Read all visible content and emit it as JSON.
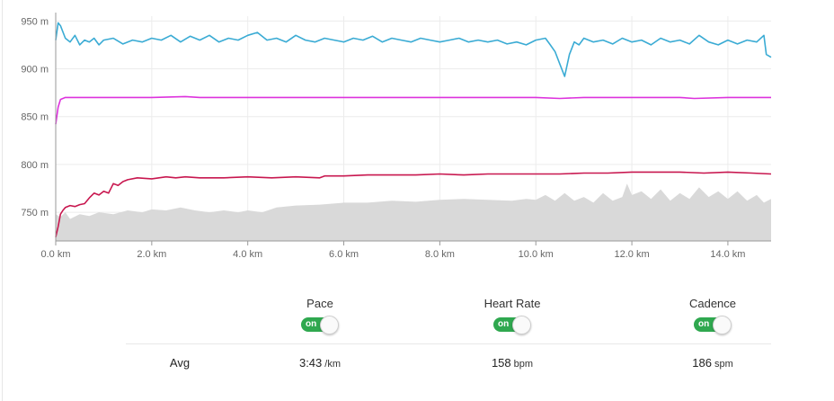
{
  "chart_data": {
    "type": "line",
    "xlabel": "",
    "ylabel": "",
    "xlim": [
      0,
      14.9
    ],
    "ylim": [
      720,
      955
    ],
    "x_ticks": [
      0,
      2,
      4,
      6,
      8,
      10,
      12,
      14
    ],
    "x_tick_labels": [
      "0.0 km",
      "2.0 km",
      "4.0 km",
      "6.0 km",
      "8.0 km",
      "10.0 km",
      "12.0 km",
      "14.0 km"
    ],
    "y_ticks": [
      750,
      800,
      850,
      900,
      950
    ],
    "y_tick_labels": [
      "750 m",
      "800 m",
      "850 m",
      "900 m",
      "950 m"
    ],
    "grid": true,
    "series": [
      {
        "color": "#d9d9d9",
        "kind": "area",
        "x": [
          0,
          0.1,
          0.2,
          0.3,
          0.5,
          0.7,
          0.9,
          1.2,
          1.5,
          1.8,
          2.0,
          2.3,
          2.6,
          2.9,
          3.2,
          3.5,
          3.8,
          4.0,
          4.3,
          4.6,
          5.0,
          5.5,
          6.0,
          6.5,
          7.0,
          7.5,
          8.0,
          8.5,
          9.0,
          9.5,
          9.8,
          10.0,
          10.2,
          10.4,
          10.6,
          10.8,
          11.0,
          11.2,
          11.4,
          11.6,
          11.8,
          11.9,
          12.0,
          12.2,
          12.4,
          12.6,
          12.8,
          13.0,
          13.2,
          13.4,
          13.6,
          13.8,
          14.0,
          14.2,
          14.4,
          14.6,
          14.75,
          14.9
        ],
        "y": [
          748,
          745,
          750,
          743,
          748,
          746,
          750,
          748,
          752,
          750,
          753,
          752,
          755,
          752,
          750,
          752,
          750,
          752,
          750,
          755,
          757,
          758,
          760,
          760,
          762,
          761,
          763,
          764,
          763,
          762,
          764,
          763,
          768,
          762,
          770,
          762,
          766,
          760,
          770,
          762,
          766,
          780,
          768,
          772,
          764,
          774,
          762,
          770,
          764,
          776,
          766,
          772,
          764,
          772,
          762,
          768,
          760,
          764
        ]
      },
      {
        "color": "#c8174f",
        "kind": "line",
        "x": [
          0,
          0.05,
          0.1,
          0.15,
          0.2,
          0.3,
          0.4,
          0.5,
          0.6,
          0.7,
          0.8,
          0.9,
          1.0,
          1.1,
          1.2,
          1.3,
          1.4,
          1.5,
          1.7,
          2.0,
          2.3,
          2.5,
          2.7,
          3.0,
          3.5,
          4.0,
          4.5,
          5.0,
          5.5,
          5.6,
          6.0,
          6.5,
          7.0,
          7.5,
          8.0,
          8.5,
          9.0,
          9.5,
          10.0,
          10.5,
          11.0,
          11.5,
          12.0,
          12.5,
          13.0,
          13.5,
          14.0,
          14.5,
          14.9
        ],
        "y": [
          724,
          735,
          748,
          752,
          755,
          757,
          756,
          758,
          759,
          765,
          770,
          768,
          772,
          770,
          780,
          778,
          782,
          784,
          786,
          785,
          787,
          786,
          787,
          786,
          786,
          787,
          786,
          787,
          786,
          788,
          788,
          789,
          789,
          789,
          790,
          789,
          790,
          790,
          790,
          790,
          791,
          791,
          792,
          792,
          792,
          791,
          792,
          791,
          790
        ]
      },
      {
        "color": "#dd33dd",
        "kind": "line",
        "x": [
          0,
          0.05,
          0.1,
          0.2,
          0.5,
          1.0,
          2.0,
          2.7,
          3.0,
          4.0,
          5.0,
          6.0,
          7.0,
          8.0,
          9.0,
          10.0,
          10.5,
          11.0,
          12.0,
          13.0,
          13.3,
          14.0,
          14.5,
          14.9
        ],
        "y": [
          842,
          860,
          868,
          870,
          870,
          870,
          870,
          871,
          870,
          870,
          870,
          870,
          870,
          870,
          870,
          870,
          869,
          870,
          870,
          870,
          869,
          870,
          870,
          870
        ]
      },
      {
        "color": "#3aabd4",
        "kind": "line",
        "x": [
          0,
          0.05,
          0.1,
          0.2,
          0.3,
          0.4,
          0.5,
          0.6,
          0.7,
          0.8,
          0.9,
          1.0,
          1.2,
          1.4,
          1.6,
          1.8,
          2.0,
          2.2,
          2.4,
          2.6,
          2.8,
          3.0,
          3.2,
          3.4,
          3.6,
          3.8,
          4.0,
          4.2,
          4.4,
          4.6,
          4.8,
          5.0,
          5.2,
          5.4,
          5.6,
          5.8,
          6.0,
          6.2,
          6.4,
          6.6,
          6.8,
          7.0,
          7.2,
          7.4,
          7.6,
          7.8,
          8.0,
          8.2,
          8.4,
          8.6,
          8.8,
          9.0,
          9.2,
          9.4,
          9.6,
          9.8,
          10.0,
          10.2,
          10.3,
          10.4,
          10.5,
          10.6,
          10.7,
          10.8,
          10.9,
          11.0,
          11.2,
          11.4,
          11.6,
          11.8,
          12.0,
          12.2,
          12.4,
          12.6,
          12.8,
          13.0,
          13.2,
          13.4,
          13.6,
          13.8,
          14.0,
          14.2,
          14.4,
          14.6,
          14.75,
          14.8,
          14.9
        ],
        "y": [
          930,
          948,
          945,
          932,
          928,
          935,
          925,
          930,
          928,
          932,
          925,
          930,
          932,
          926,
          930,
          928,
          932,
          930,
          935,
          928,
          934,
          930,
          935,
          928,
          932,
          930,
          935,
          938,
          930,
          932,
          928,
          935,
          930,
          928,
          932,
          930,
          928,
          932,
          930,
          934,
          928,
          932,
          930,
          928,
          932,
          930,
          928,
          930,
          932,
          928,
          930,
          928,
          930,
          926,
          928,
          925,
          930,
          932,
          925,
          918,
          905,
          892,
          915,
          928,
          925,
          932,
          928,
          930,
          926,
          932,
          928,
          930,
          925,
          932,
          928,
          930,
          926,
          935,
          928,
          925,
          930,
          926,
          930,
          928,
          935,
          915,
          912
        ]
      }
    ],
    "plot_area": {}
  },
  "controls": [
    {
      "label": "Pace",
      "toggle_text": "on",
      "avg_value": "3:43",
      "avg_unit": "/km"
    },
    {
      "label": "Heart Rate",
      "toggle_text": "on",
      "avg_value": "158",
      "avg_unit": "bpm"
    },
    {
      "label": "Cadence",
      "toggle_text": "on",
      "avg_value": "186",
      "avg_unit": "spm"
    }
  ],
  "avg_label": "Avg"
}
